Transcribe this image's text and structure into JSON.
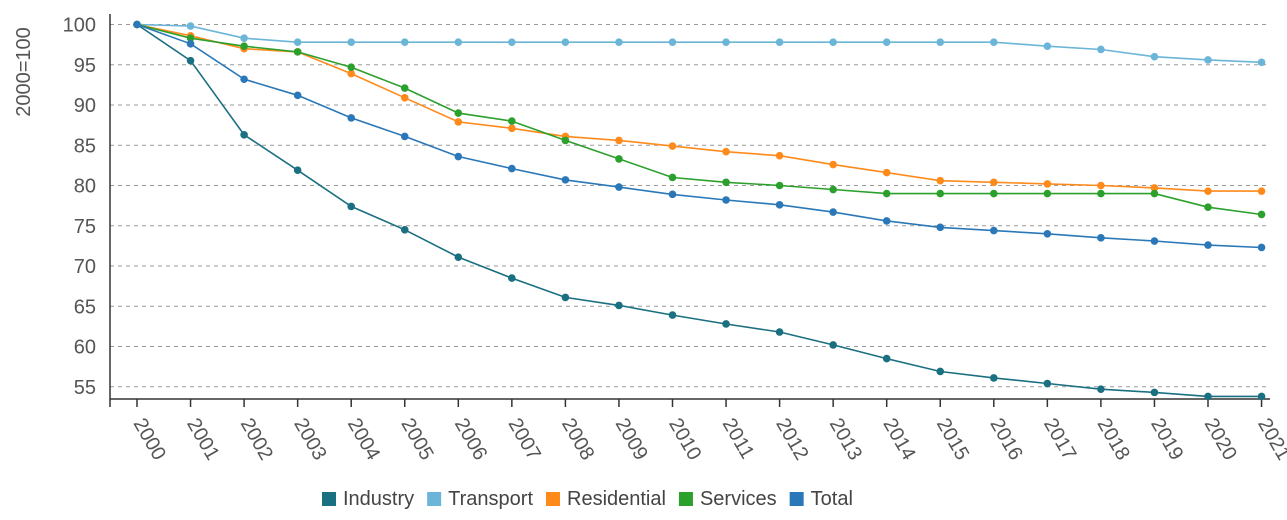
{
  "chart_data": {
    "type": "line",
    "title": "",
    "xlabel": "",
    "ylabel": "2000=100",
    "ylim": [
      54,
      100
    ],
    "yticks": [
      100,
      95,
      90,
      85,
      80,
      75,
      70,
      65,
      60,
      55
    ],
    "grid": true,
    "legend_position": "bottom",
    "x": [
      "2000",
      "2001",
      "2002",
      "2003",
      "2004",
      "2005",
      "2006",
      "2007",
      "2008",
      "2009",
      "2010",
      "2011",
      "2012",
      "2013",
      "2014",
      "2015",
      "2016",
      "2017",
      "2018",
      "2019",
      "2020",
      "2021"
    ],
    "series": [
      {
        "name": "Industry",
        "color": "#1a6f80",
        "values": [
          100,
          95.5,
          86.3,
          81.9,
          77.4,
          74.5,
          71.1,
          68.5,
          66.1,
          65.1,
          63.9,
          62.8,
          61.8,
          60.2,
          58.5,
          56.9,
          56.1,
          55.4,
          54.7,
          54.3,
          53.8,
          53.8
        ]
      },
      {
        "name": "Transport",
        "color": "#6bb5d8",
        "values": [
          100,
          99.8,
          98.3,
          97.8,
          97.8,
          97.8,
          97.8,
          97.8,
          97.8,
          97.8,
          97.8,
          97.8,
          97.8,
          97.8,
          97.8,
          97.8,
          97.8,
          97.3,
          96.9,
          96.0,
          95.6,
          95.3
        ]
      },
      {
        "name": "Residential",
        "color": "#ff8a1c",
        "values": [
          100,
          98.6,
          97.0,
          96.6,
          93.9,
          90.9,
          87.9,
          87.1,
          86.1,
          85.6,
          84.9,
          84.2,
          83.7,
          82.6,
          81.6,
          80.6,
          80.4,
          80.2,
          80.0,
          79.7,
          79.3,
          79.3
        ]
      },
      {
        "name": "Services",
        "color": "#2ca02c",
        "values": [
          100,
          98.3,
          97.3,
          96.6,
          94.7,
          92.1,
          89.0,
          88.0,
          85.6,
          83.3,
          81.0,
          80.4,
          80.0,
          79.5,
          79.0,
          79.0,
          79.0,
          79.0,
          79.0,
          79.0,
          77.3,
          76.4
        ]
      },
      {
        "name": "Total",
        "color": "#2a78b8",
        "values": [
          100,
          97.6,
          93.2,
          91.2,
          88.4,
          86.1,
          83.6,
          82.1,
          80.7,
          79.8,
          78.9,
          78.2,
          77.6,
          76.7,
          75.6,
          74.8,
          74.4,
          74.0,
          73.5,
          73.1,
          72.6,
          72.3
        ]
      }
    ]
  }
}
